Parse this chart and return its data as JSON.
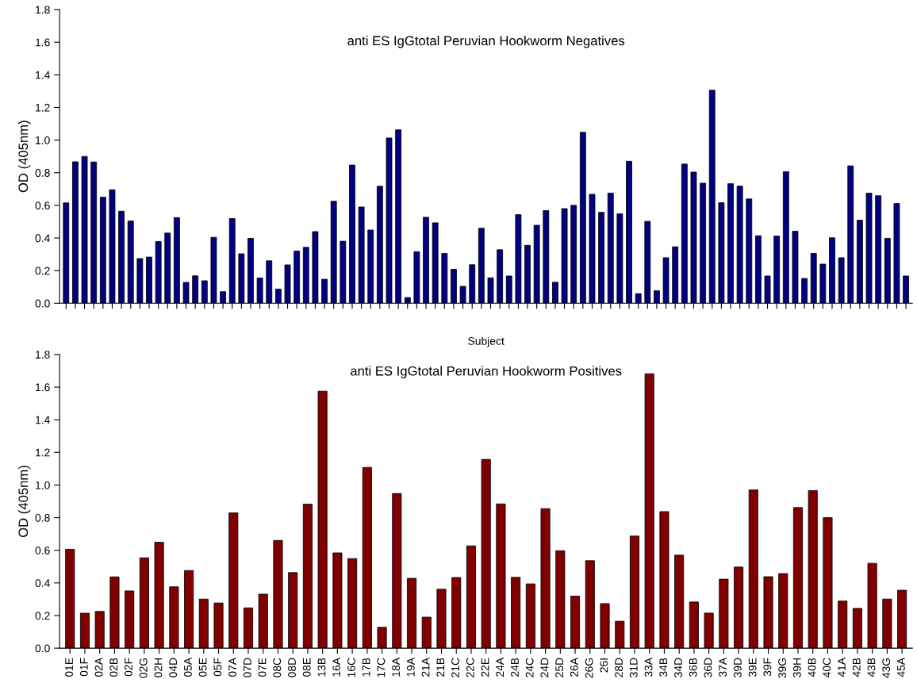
{
  "chart_data": [
    {
      "type": "bar",
      "title": "anti ES IgGtotal Peruvian Hookworm Negatives",
      "xlabel": "Subject",
      "ylabel": "OD (405nm)",
      "categories": [
        null,
        null,
        null,
        null,
        null,
        null,
        null,
        null,
        null,
        null,
        null,
        null,
        null,
        null,
        null,
        null,
        null,
        null,
        null,
        null,
        null,
        null,
        null,
        null,
        null,
        null,
        null,
        null,
        null,
        null,
        null,
        null,
        null,
        null,
        null,
        null,
        null,
        null,
        null,
        null,
        null,
        null,
        null,
        null,
        null,
        null,
        null,
        null,
        null,
        null,
        null,
        null,
        null,
        null,
        null,
        null,
        null,
        null,
        null,
        null,
        null,
        null,
        null,
        null,
        null,
        null,
        null,
        null,
        null,
        null,
        null,
        null,
        null,
        null,
        null,
        null,
        null,
        null,
        null,
        null,
        null,
        null,
        null,
        null,
        null,
        null,
        null,
        null,
        null,
        null,
        null,
        null
      ],
      "values": [
        0.615,
        0.867,
        0.9,
        0.866,
        0.65,
        0.696,
        0.564,
        0.504,
        0.274,
        0.283,
        0.378,
        0.43,
        0.525,
        0.128,
        0.168,
        0.138,
        0.404,
        0.071,
        0.519,
        0.303,
        0.398,
        0.155,
        0.26,
        0.087,
        0.235,
        0.32,
        0.343,
        0.439,
        0.147,
        0.625,
        0.38,
        0.847,
        0.59,
        0.449,
        0.717,
        1.013,
        1.063,
        0.035,
        0.316,
        0.527,
        0.493,
        0.305,
        0.208,
        0.104,
        0.236,
        0.46,
        0.156,
        0.328,
        0.167,
        0.543,
        0.355,
        0.478,
        0.568,
        0.129,
        0.58,
        0.6,
        1.048,
        0.668,
        0.557,
        0.675,
        0.548,
        0.87,
        0.059,
        0.502,
        0.077,
        0.279,
        0.346,
        0.853,
        0.804,
        0.736,
        1.306,
        0.616,
        0.733,
        0.718,
        0.639,
        0.414,
        0.167,
        0.412,
        0.806,
        0.441,
        0.152,
        0.305,
        0.24,
        0.401,
        0.279,
        0.842,
        0.509,
        0.675,
        0.659,
        0.398,
        0.611,
        0.167
      ],
      "color": "#000080",
      "ylim": [
        0,
        1.8
      ],
      "yticks": [
        {
          "value": 0,
          "label": "0.0"
        },
        {
          "value": 0.2,
          "label": "0.2"
        },
        {
          "value": 0.4,
          "label": "0.4"
        },
        {
          "value": 0.6,
          "label": "0.6"
        },
        {
          "value": 0.8,
          "label": "0.8"
        },
        {
          "value": 1.0,
          "label": "1.0"
        },
        {
          "value": 1.2,
          "label": "1.2"
        },
        {
          "value": 1.4,
          "label": "1.4"
        },
        {
          "value": 1.6,
          "label": "1.6"
        },
        {
          "value": 1.8,
          "label": "1.8"
        }
      ],
      "grid": false,
      "legend": false
    },
    {
      "type": "bar",
      "title": "anti ES IgGtotal Peruvian Hookworm Positives",
      "ylabel": "OD (405nm)",
      "categories": [
        "01E",
        "01F",
        "02A",
        "02B",
        "02F",
        "02G",
        "02H",
        "04D",
        "05A",
        "05E",
        "05F",
        "07A",
        "07D",
        "07E",
        "08C",
        "08D",
        "08E",
        "13B",
        "16A",
        "16C",
        "17B",
        "17C",
        "18A",
        "19A",
        "21A",
        "21B",
        "21C",
        "22C",
        "22E",
        "24A",
        "24B",
        "24C",
        "24D",
        "25D",
        "26A",
        "26G",
        "26I",
        "28D",
        "31D",
        "33A",
        "34B",
        "34D",
        "36B",
        "36D",
        "37A",
        "39D",
        "39E",
        "39F",
        "39G",
        "39H",
        "40B",
        "40C",
        "41A",
        "42B",
        "43B",
        "43G",
        "45A"
      ],
      "values": [
        0.606,
        0.214,
        0.225,
        0.437,
        0.351,
        0.554,
        0.649,
        0.376,
        0.476,
        0.301,
        0.277,
        0.829,
        0.247,
        0.331,
        0.66,
        0.463,
        0.883,
        1.575,
        0.584,
        0.549,
        1.108,
        0.128,
        0.948,
        0.428,
        0.19,
        0.361,
        0.433,
        0.627,
        1.157,
        0.884,
        0.434,
        0.394,
        0.855,
        0.597,
        0.319,
        0.536,
        0.273,
        0.165,
        0.687,
        1.682,
        0.837,
        0.57,
        0.283,
        0.215,
        0.423,
        0.497,
        0.97,
        0.438,
        0.457,
        0.862,
        0.966,
        0.8,
        0.289,
        0.244,
        0.52,
        0.301,
        0.355
      ],
      "color": "#800000",
      "ylim": [
        0,
        1.8
      ],
      "yticks": [
        {
          "value": 0,
          "label": "0.0"
        },
        {
          "value": 0.2,
          "label": "0.2"
        },
        {
          "value": 0.4,
          "label": "0.4"
        },
        {
          "value": 0.6,
          "label": "0.6"
        },
        {
          "value": 0.8,
          "label": "0.8"
        },
        {
          "value": 1.0,
          "label": "1.0"
        },
        {
          "value": 1.2,
          "label": "1.2"
        },
        {
          "value": 1.4,
          "label": "1.4"
        },
        {
          "value": 1.6,
          "label": "1.6"
        },
        {
          "value": 1.8,
          "label": "1.8"
        }
      ],
      "grid": false,
      "legend": false
    }
  ]
}
